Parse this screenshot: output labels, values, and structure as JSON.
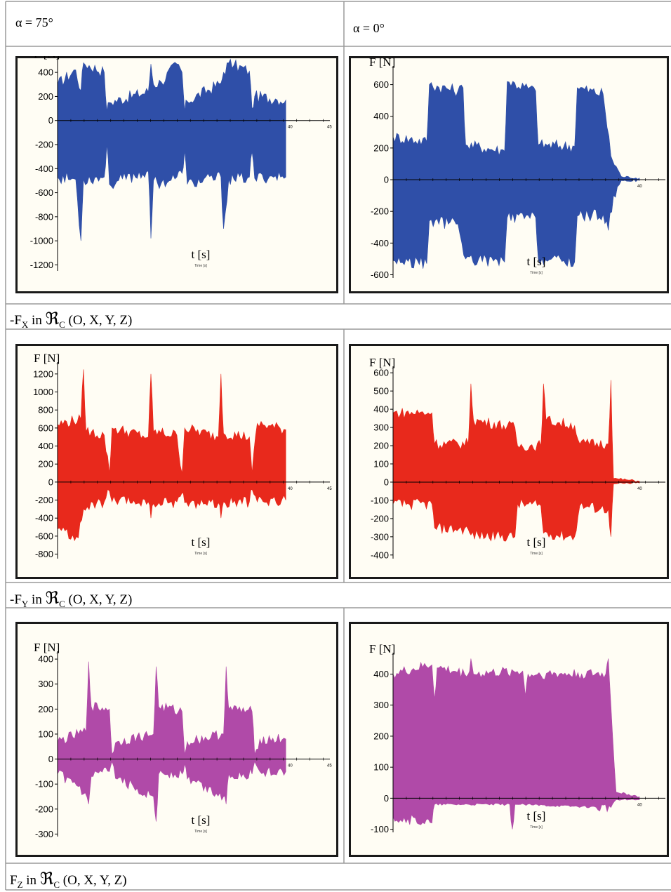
{
  "header": {
    "left": "α = 75°",
    "right": "α = 0°"
  },
  "captions": [
    {
      "prefix": "-F",
      "sub": "X",
      "mid": " in ",
      "frame": "ℜ",
      "frame_sub": "C",
      "tail": " (O, X, Y, Z)"
    },
    {
      "prefix": "-F",
      "sub": "Y",
      "mid": " in ",
      "frame": "ℜ",
      "frame_sub": "C",
      "tail": " (O, X, Y, Z)"
    },
    {
      "prefix": "F",
      "sub": "Z",
      "mid": " in ",
      "frame": "ℜ",
      "frame_sub": "C",
      "tail": " (O, X, Y, Z)"
    }
  ],
  "colors": {
    "fx": "#2f4fa8",
    "fy": "#e8291c",
    "fz": "#b04aa8",
    "plot_bg": "#fffdf4"
  },
  "chart_data": [
    {
      "id": "fx-75",
      "type": "area",
      "color": "#2f4fa8",
      "ylabel": "F [N]",
      "xlabel": "t [s]",
      "xlabel_small": "Time [s]",
      "yticks": [
        400,
        200,
        0,
        -200,
        -400,
        -600,
        -800,
        -1000,
        -1200
      ],
      "ylim": [
        -1250,
        500
      ],
      "x_end_tick_labels": [
        "40",
        "45"
      ],
      "series": [
        {
          "upper": [
            [
              0,
              300
            ],
            [
              0.7,
              420
            ],
            [
              0.9,
              250
            ],
            [
              1.0,
              480
            ],
            [
              1.8,
              400
            ],
            [
              1.9,
              80
            ],
            [
              2.0,
              150
            ],
            [
              3.5,
              240
            ],
            [
              3.6,
              470
            ],
            [
              3.7,
              300
            ],
            [
              4.0,
              320
            ],
            [
              4.6,
              470
            ],
            [
              4.8,
              400
            ],
            [
              4.9,
              80
            ],
            [
              5.0,
              160
            ],
            [
              6.3,
              310
            ],
            [
              6.4,
              400
            ],
            [
              6.6,
              480
            ],
            [
              6.8,
              460
            ],
            [
              7.4,
              410
            ],
            [
              7.5,
              100
            ],
            [
              7.6,
              200
            ],
            [
              8.4,
              180
            ],
            [
              8.8,
              170
            ]
          ],
          "lower": [
            [
              0,
              -470
            ],
            [
              0.7,
              -490
            ],
            [
              0.9,
              -1000
            ],
            [
              1.0,
              -490
            ],
            [
              1.8,
              -470
            ],
            [
              1.9,
              -200
            ],
            [
              2.0,
              -530
            ],
            [
              3.5,
              -420
            ],
            [
              3.6,
              -980
            ],
            [
              3.7,
              -500
            ],
            [
              4.0,
              -520
            ],
            [
              4.6,
              -470
            ],
            [
              4.8,
              -440
            ],
            [
              4.9,
              -250
            ],
            [
              5.0,
              -530
            ],
            [
              6.3,
              -470
            ],
            [
              6.4,
              -900
            ],
            [
              6.6,
              -490
            ],
            [
              6.8,
              -490
            ],
            [
              7.4,
              -470
            ],
            [
              7.5,
              -260
            ],
            [
              7.6,
              -480
            ],
            [
              8.4,
              -460
            ],
            [
              8.8,
              -470
            ]
          ]
        }
      ]
    },
    {
      "id": "fx-0",
      "type": "area",
      "color": "#2f4fa8",
      "ylabel": "F [N]",
      "xlabel": "t [s]",
      "xlabel_small": "Time [s]",
      "yticks": [
        600,
        400,
        200,
        0,
        -200,
        -400,
        -600
      ],
      "ylim": [
        -620,
        700
      ],
      "x_end_tick_labels": [
        "40"
      ],
      "series": [
        {
          "upper": [
            [
              0,
              270
            ],
            [
              1.3,
              240
            ],
            [
              1.4,
              600
            ],
            [
              2.5,
              560
            ],
            [
              2.7,
              580
            ],
            [
              2.8,
              220
            ],
            [
              4.3,
              180
            ],
            [
              4.4,
              620
            ],
            [
              5.5,
              560
            ],
            [
              5.6,
              220
            ],
            [
              7.0,
              210
            ],
            [
              7.1,
              580
            ],
            [
              8.1,
              540
            ],
            [
              8.4,
              150
            ],
            [
              8.8,
              20
            ],
            [
              9.5,
              10
            ]
          ],
          "lower": [
            [
              0,
              -510
            ],
            [
              1.3,
              -530
            ],
            [
              1.4,
              -260
            ],
            [
              2.5,
              -280
            ],
            [
              2.8,
              -500
            ],
            [
              4.3,
              -520
            ],
            [
              4.4,
              -240
            ],
            [
              5.5,
              -240
            ],
            [
              5.6,
              -500
            ],
            [
              7.0,
              -520
            ],
            [
              7.1,
              -230
            ],
            [
              8.1,
              -220
            ],
            [
              8.3,
              -320
            ],
            [
              8.5,
              -100
            ],
            [
              8.8,
              -5
            ],
            [
              9.5,
              -5
            ]
          ]
        }
      ]
    },
    {
      "id": "fy-75",
      "type": "area",
      "color": "#e8291c",
      "ylabel": "F [N]",
      "xlabel": "t [s]",
      "xlabel_small": "Time [s]",
      "yticks": [
        1200,
        1000,
        800,
        600,
        400,
        200,
        0,
        -200,
        -400,
        -600,
        -800
      ],
      "ylim": [
        -850,
        1300
      ],
      "x_end_tick_labels": [
        "40",
        "45"
      ],
      "series": [
        {
          "upper": [
            [
              0,
              640
            ],
            [
              0.9,
              700
            ],
            [
              1.0,
              1250
            ],
            [
              1.1,
              560
            ],
            [
              1.8,
              520
            ],
            [
              2.0,
              100
            ],
            [
              2.1,
              600
            ],
            [
              3.5,
              500
            ],
            [
              3.6,
              1200
            ],
            [
              3.7,
              560
            ],
            [
              4.6,
              520
            ],
            [
              4.8,
              100
            ],
            [
              4.9,
              600
            ],
            [
              6.2,
              500
            ],
            [
              6.3,
              1200
            ],
            [
              6.4,
              540
            ],
            [
              7.4,
              500
            ],
            [
              7.5,
              100
            ],
            [
              7.7,
              650
            ],
            [
              8.8,
              580
            ]
          ],
          "lower": [
            [
              0,
              -520
            ],
            [
              0.8,
              -620
            ],
            [
              1.0,
              -300
            ],
            [
              1.8,
              -220
            ],
            [
              2.0,
              -100
            ],
            [
              2.1,
              -220
            ],
            [
              3.5,
              -220
            ],
            [
              3.6,
              -400
            ],
            [
              3.7,
              -240
            ],
            [
              4.6,
              -220
            ],
            [
              4.8,
              -120
            ],
            [
              4.9,
              -230
            ],
            [
              6.2,
              -230
            ],
            [
              6.3,
              -400
            ],
            [
              6.4,
              -220
            ],
            [
              7.4,
              -220
            ],
            [
              7.5,
              -80
            ],
            [
              7.7,
              -220
            ],
            [
              8.8,
              -200
            ]
          ]
        }
      ]
    },
    {
      "id": "fy-0",
      "type": "area",
      "color": "#e8291c",
      "ylabel": "F [N]",
      "xlabel": "t [s]",
      "xlabel_small": "Time [s]",
      "yticks": [
        600,
        500,
        400,
        300,
        200,
        100,
        0,
        -100,
        -200,
        -300,
        -400
      ],
      "ylim": [
        -420,
        620
      ],
      "x_end_tick_labels": [
        "40"
      ],
      "series": [
        {
          "upper": [
            [
              0,
              380
            ],
            [
              1.5,
              380
            ],
            [
              1.6,
              210
            ],
            [
              2.9,
              210
            ],
            [
              3.0,
              540
            ],
            [
              3.1,
              340
            ],
            [
              4.7,
              300
            ],
            [
              4.8,
              200
            ],
            [
              5.7,
              200
            ],
            [
              5.8,
              540
            ],
            [
              5.9,
              340
            ],
            [
              7.0,
              310
            ],
            [
              7.2,
              210
            ],
            [
              8.3,
              210
            ],
            [
              8.4,
              560
            ],
            [
              8.5,
              20
            ],
            [
              9.5,
              5
            ]
          ],
          "lower": [
            [
              0,
              -120
            ],
            [
              1.5,
              -120
            ],
            [
              1.6,
              -250
            ],
            [
              2.9,
              -260
            ],
            [
              3.0,
              -290
            ],
            [
              4.7,
              -300
            ],
            [
              4.8,
              -120
            ],
            [
              5.7,
              -130
            ],
            [
              5.8,
              -280
            ],
            [
              7.0,
              -300
            ],
            [
              7.2,
              -130
            ],
            [
              8.3,
              -150
            ],
            [
              8.4,
              -300
            ],
            [
              8.5,
              -10
            ],
            [
              9.5,
              -5
            ]
          ]
        }
      ]
    },
    {
      "id": "fz-75",
      "type": "area",
      "color": "#b04aa8",
      "ylabel": "F [N]",
      "xlabel": "t [s]",
      "xlabel_small": "Time [s]",
      "yticks": [
        400,
        300,
        200,
        100,
        0,
        -100,
        -200,
        -300
      ],
      "ylim": [
        -310,
        420
      ],
      "x_end_tick_labels": [
        "40",
        "45"
      ],
      "series": [
        {
          "upper": [
            [
              0,
              70
            ],
            [
              1.1,
              110
            ],
            [
              1.2,
              390
            ],
            [
              1.3,
              210
            ],
            [
              2.0,
              200
            ],
            [
              2.1,
              20
            ],
            [
              2.3,
              70
            ],
            [
              3.7,
              100
            ],
            [
              3.8,
              370
            ],
            [
              3.9,
              210
            ],
            [
              4.8,
              190
            ],
            [
              4.9,
              20
            ],
            [
              5.0,
              70
            ],
            [
              6.4,
              100
            ],
            [
              6.5,
              370
            ],
            [
              6.6,
              200
            ],
            [
              7.5,
              190
            ],
            [
              7.6,
              20
            ],
            [
              7.8,
              80
            ],
            [
              8.8,
              80
            ]
          ],
          "lower": [
            [
              0,
              -60
            ],
            [
              0.8,
              -110
            ],
            [
              1.2,
              -180
            ],
            [
              1.3,
              -70
            ],
            [
              2.0,
              -50
            ],
            [
              2.1,
              -10
            ],
            [
              2.3,
              -80
            ],
            [
              3.7,
              -150
            ],
            [
              3.8,
              -250
            ],
            [
              3.9,
              -60
            ],
            [
              4.8,
              -60
            ],
            [
              4.9,
              -20
            ],
            [
              5.0,
              -80
            ],
            [
              6.4,
              -150
            ],
            [
              6.5,
              -180
            ],
            [
              6.6,
              -60
            ],
            [
              7.5,
              -60
            ],
            [
              7.6,
              -10
            ],
            [
              7.8,
              -50
            ],
            [
              8.8,
              -50
            ]
          ]
        }
      ]
    },
    {
      "id": "fz-0",
      "type": "area",
      "color": "#b04aa8",
      "ylabel": "F [N]",
      "xlabel": "t [s]",
      "xlabel_small": "Time [s]",
      "yticks": [
        400,
        300,
        200,
        100,
        0,
        -100
      ],
      "ylim": [
        -110,
        460
      ],
      "x_end_tick_labels": [
        "40"
      ],
      "series": [
        {
          "upper": [
            [
              0,
              400
            ],
            [
              1.5,
              430
            ],
            [
              1.6,
              320
            ],
            [
              1.7,
              420
            ],
            [
              2.9,
              400
            ],
            [
              3.0,
              450
            ],
            [
              3.1,
              400
            ],
            [
              5.0,
              410
            ],
            [
              5.1,
              330
            ],
            [
              5.2,
              400
            ],
            [
              8.2,
              400
            ],
            [
              8.3,
              450
            ],
            [
              8.4,
              300
            ],
            [
              8.6,
              20
            ],
            [
              9.5,
              5
            ]
          ],
          "lower": [
            [
              0,
              -60
            ],
            [
              1.5,
              -80
            ],
            [
              1.6,
              -20
            ],
            [
              4.5,
              -20
            ],
            [
              4.6,
              -100
            ],
            [
              4.7,
              -20
            ],
            [
              8.4,
              -30
            ],
            [
              8.6,
              -5
            ],
            [
              9.5,
              -5
            ]
          ]
        }
      ]
    }
  ]
}
